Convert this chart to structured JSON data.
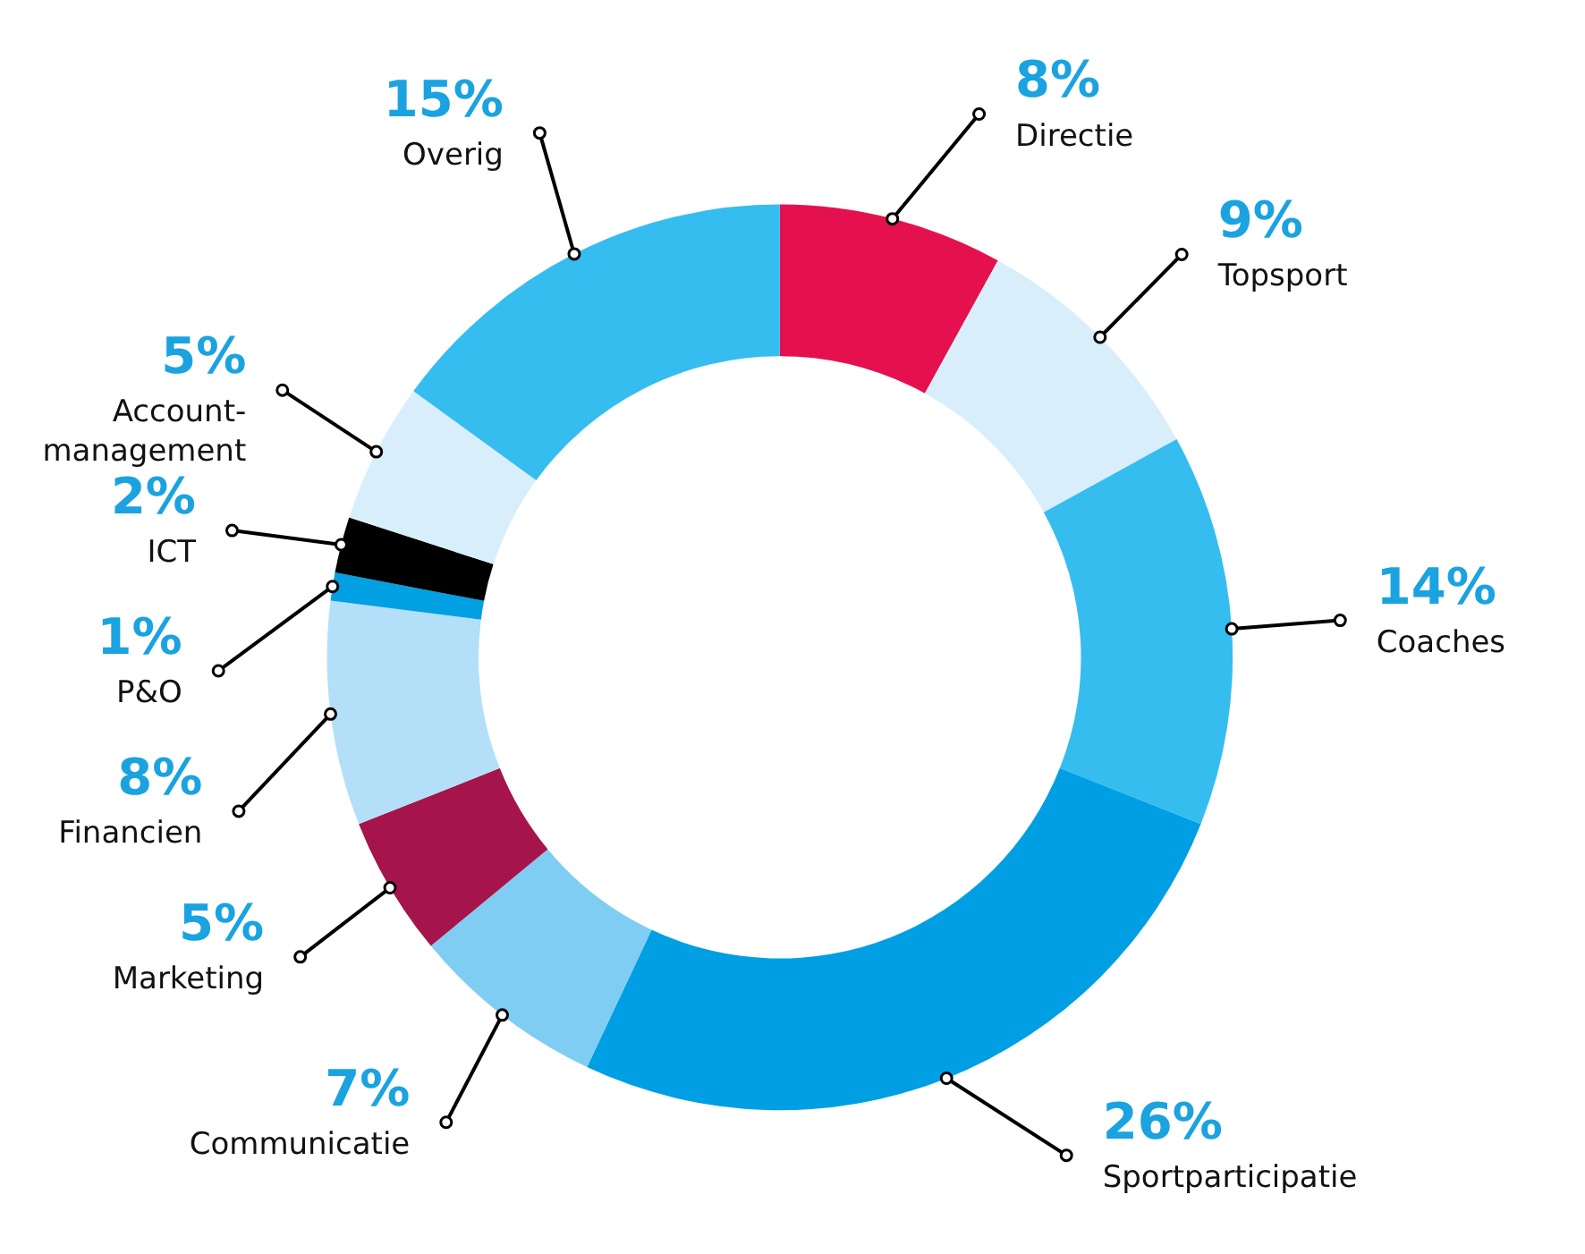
{
  "chart_data": {
    "type": "donut",
    "categories": [
      "Directie",
      "Topsport",
      "Coaches",
      "Sportparticipatie",
      "Communicatie",
      "Marketing",
      "Financien",
      "P&O",
      "ICT",
      "Account-management",
      "Overig"
    ],
    "values": [
      8,
      9,
      14,
      26,
      7,
      5,
      8,
      1,
      2,
      5,
      15
    ],
    "value_labels": [
      "8%",
      "9%",
      "14%",
      "26%",
      "7%",
      "5%",
      "8%",
      "1%",
      "2%",
      "5%",
      "15%"
    ],
    "colors": [
      "#e5114f",
      "#d9eefb",
      "#35bdf0",
      "#009fe3",
      "#7fcdf3",
      "#a5154b",
      "#b3e0f8",
      "#00a0e3",
      "#000000",
      "#d9eefb",
      "#35bdf0"
    ]
  }
}
